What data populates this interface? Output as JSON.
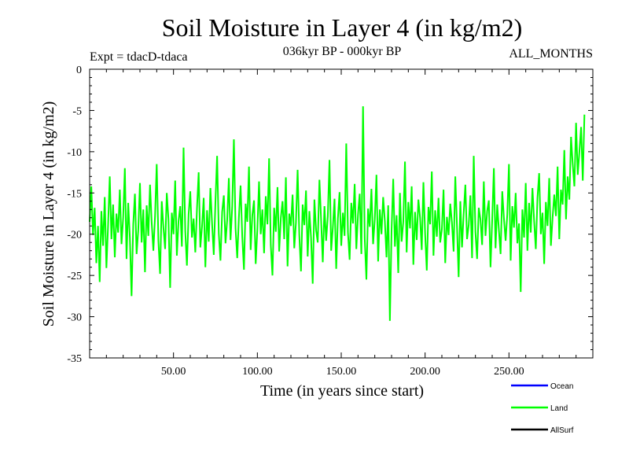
{
  "chart_data": {
    "type": "line",
    "title": "Soil Moisture in Layer 4 (in kg/m2)",
    "subtitle": "036kyr BP - 000kyr BP",
    "expt_label": "Expt = tdacD-tdaca",
    "period_label": "ALL_MONTHS",
    "xlabel": "Time (in years since start)",
    "ylabel": "Soil Moisture in Layer 4 (in kg/m2)",
    "xlim": [
      0,
      300
    ],
    "ylim": [
      -35,
      0
    ],
    "x_ticks": [
      50,
      100,
      150,
      200,
      250
    ],
    "x_tick_labels": [
      "50.00",
      "100.00",
      "150.00",
      "200.00",
      "250.00"
    ],
    "y_ticks": [
      0,
      -5,
      -10,
      -15,
      -20,
      -25,
      -30,
      -35
    ],
    "y_tick_labels": [
      "0",
      "-5",
      "-10",
      "-15",
      "-20",
      "-25",
      "-30",
      "-35"
    ],
    "series": [
      {
        "name": "Land",
        "color": "#00ff00",
        "x_start": 0,
        "x_step": 1,
        "values": [
          -18.5,
          -14.2,
          -20.1,
          -16.8,
          -23.5,
          -19.0,
          -25.8,
          -17.2,
          -21.4,
          -15.5,
          -24.1,
          -18.9,
          -13.0,
          -20.6,
          -16.4,
          -22.8,
          -17.5,
          -19.8,
          -14.6,
          -21.2,
          -18.0,
          -12.0,
          -23.0,
          -16.2,
          -20.5,
          -27.5,
          -18.8,
          -15.1,
          -22.4,
          -19.5,
          -13.8,
          -21.0,
          -17.0,
          -24.6,
          -16.5,
          -20.2,
          -14.0,
          -18.6,
          -22.0,
          -17.8,
          -11.5,
          -20.8,
          -24.8,
          -16.0,
          -19.2,
          -21.8,
          -15.0,
          -18.2,
          -26.5,
          -17.4,
          -20.0,
          -13.5,
          -22.6,
          -18.4,
          -16.6,
          -21.5,
          -9.5,
          -19.6,
          -23.8,
          -17.6,
          -14.8,
          -20.4,
          -18.1,
          -22.2,
          -16.9,
          -12.5,
          -21.6,
          -19.1,
          -15.6,
          -24.0,
          -17.1,
          -20.9,
          -14.4,
          -18.7,
          -22.5,
          -16.1,
          -10.5,
          -19.9,
          -23.2,
          -17.3,
          -15.3,
          -21.1,
          -18.3,
          -13.2,
          -20.7,
          -16.7,
          -8.5,
          -19.3,
          -22.9,
          -17.9,
          -14.1,
          -20.3,
          -24.3,
          -16.3,
          -18.5,
          -11.8,
          -21.9,
          -17.7,
          -15.9,
          -23.6,
          -19.4,
          -13.6,
          -20.0,
          -17.0,
          -22.3,
          -15.4,
          -18.8,
          -10.8,
          -21.3,
          -25.0,
          -16.8,
          -19.7,
          -14.3,
          -22.1,
          -18.0,
          -16.0,
          -20.6,
          -13.1,
          -23.9,
          -17.5,
          -19.0,
          -15.2,
          -21.7,
          -18.6,
          -12.2,
          -20.1,
          -24.5,
          -16.4,
          -18.9,
          -14.7,
          -22.7,
          -17.2,
          -20.4,
          -26.0,
          -15.8,
          -19.5,
          -21.0,
          -13.4,
          -18.3,
          -23.4,
          -16.6,
          -20.8,
          -17.8,
          -11.0,
          -22.0,
          -19.2,
          -15.7,
          -24.2,
          -18.1,
          -14.9,
          -21.4,
          -17.4,
          -20.2,
          -9.0,
          -19.8,
          -23.1,
          -16.2,
          -18.7,
          -13.9,
          -21.8,
          -17.6,
          -15.1,
          -22.4,
          -4.5,
          -20.5,
          -25.5,
          -16.9,
          -19.1,
          -14.5,
          -21.2,
          -18.2,
          -12.8,
          -23.3,
          -17.0,
          -20.0,
          -15.5,
          -18.4,
          -22.8,
          -16.5,
          -30.5,
          -19.6,
          -13.3,
          -21.5,
          -17.7,
          -24.7,
          -15.0,
          -20.9,
          -18.5,
          -11.2,
          -22.2,
          -16.1,
          -19.3,
          -14.2,
          -23.7,
          -17.3,
          -20.7,
          -15.8,
          -18.0,
          -21.9,
          -13.7,
          -19.9,
          -24.4,
          -16.7,
          -18.8,
          -12.4,
          -22.6,
          -17.1,
          -20.3,
          -15.6,
          -21.0,
          -19.4,
          -14.6,
          -23.5,
          -17.9,
          -20.1,
          -16.3,
          -18.6,
          -22.1,
          -13.0,
          -19.0,
          -25.2,
          -16.0,
          -21.6,
          -17.5,
          -14.0,
          -20.6,
          -18.9,
          -15.3,
          -22.9,
          -10.5,
          -19.7,
          -23.0,
          -16.8,
          -18.2,
          -21.3,
          -13.6,
          -20.2,
          -17.2,
          -15.9,
          -24.0,
          -18.3,
          -12.0,
          -21.7,
          -16.4,
          -19.5,
          -22.4,
          -14.8,
          -18.1,
          -20.8,
          -17.6,
          -11.5,
          -23.2,
          -16.6,
          -19.2,
          -15.0,
          -21.1,
          -18.7,
          -27.0,
          -17.0,
          -20.4,
          -13.8,
          -22.0,
          -16.2,
          -19.8,
          -14.4,
          -18.4,
          -21.8,
          -15.6,
          -12.6,
          -20.0,
          -17.4,
          -23.6,
          -16.1,
          -19.0,
          -13.2,
          -21.4,
          -18.0,
          -15.2,
          -17.8,
          -11.8,
          -20.6,
          -14.6,
          -16.4,
          -9.8,
          -18.2,
          -13.0,
          -15.8,
          -8.2,
          -11.5,
          -14.2,
          -6.5,
          -12.8,
          -10.0,
          -7.0,
          -13.5,
          -5.5
        ]
      },
      {
        "name": "Ocean",
        "color": "#0000ff",
        "values": []
      },
      {
        "name": "AllSurf",
        "color": "#000000",
        "values": []
      }
    ],
    "legend": [
      {
        "label": "Ocean",
        "color": "#0000ff"
      },
      {
        "label": "Land",
        "color": "#00ff00"
      },
      {
        "label": "AllSurf",
        "color": "#000000"
      }
    ],
    "legend_position": "bottom-right"
  }
}
